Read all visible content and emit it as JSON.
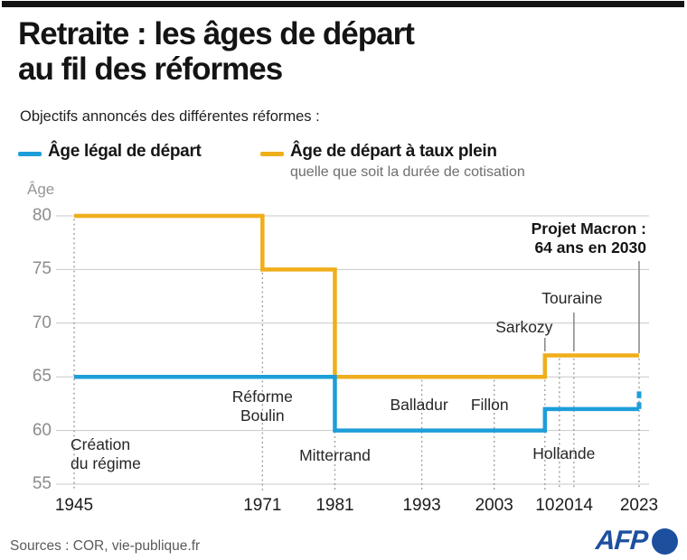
{
  "header": {
    "title": "Retraite : les âges de départ\nau fil des réformes",
    "subtitle": "Objectifs annoncés des différentes réformes :"
  },
  "legend": {
    "series1": {
      "label": "Âge légal de départ",
      "color": "#1d9ed9"
    },
    "series2": {
      "label": "Âge de départ à taux plein",
      "sublabel": "quelle que soit la durée de cotisation",
      "color": "#efae1b"
    }
  },
  "chart_data": {
    "type": "line",
    "step": true,
    "title": "Retraite : les âges de départ au fil des réformes",
    "ylabel": "Âge",
    "xlim": [
      1945,
      2023
    ],
    "ylim": [
      55,
      80
    ],
    "grid": "horizontal",
    "legend_position": "top",
    "yticks": [
      80,
      75,
      70,
      65,
      60,
      55
    ],
    "xticks": [
      {
        "year": 1945,
        "label": "1945"
      },
      {
        "year": 1971,
        "label": "1971"
      },
      {
        "year": 1981,
        "label": "1981"
      },
      {
        "year": 1993,
        "label": "1993"
      },
      {
        "year": 2003,
        "label": "2003"
      },
      {
        "year": 2010,
        "label": "10"
      },
      {
        "year": 2014,
        "label": "2014"
      },
      {
        "year": 2023,
        "label": "2023"
      }
    ],
    "series": [
      {
        "name": "Âge de départ à taux plein",
        "color": "#efae1b",
        "points": [
          [
            1945,
            80
          ],
          [
            1971,
            80
          ],
          [
            1971,
            75
          ],
          [
            1981,
            75
          ],
          [
            1981,
            65
          ],
          [
            2010,
            65
          ],
          [
            2010,
            67
          ],
          [
            2023,
            67
          ]
        ]
      },
      {
        "name": "Âge légal de départ",
        "color": "#1d9ed9",
        "points": [
          [
            1945,
            65
          ],
          [
            1981,
            65
          ],
          [
            1981,
            60
          ],
          [
            2010,
            60
          ],
          [
            2010,
            62
          ],
          [
            2023,
            62
          ]
        ],
        "projection": [
          [
            2023,
            62
          ],
          [
            2023,
            64
          ]
        ]
      }
    ],
    "ref_lines": [
      {
        "year": 1945,
        "top": 80
      },
      {
        "year": 1971,
        "top": 75
      },
      {
        "year": 1981,
        "top": 65
      },
      {
        "year": 1993,
        "top": 65
      },
      {
        "year": 2003,
        "top": 65
      },
      {
        "year": 2010,
        "top": 65
      },
      {
        "year": 2012,
        "top": 67
      },
      {
        "year": 2014,
        "top": 67
      },
      {
        "year": 2023,
        "top": 67
      }
    ],
    "annotations": [
      {
        "id": "creation",
        "text": "Création\ndu régime"
      },
      {
        "id": "boulin",
        "text": "Réforme\nBoulin"
      },
      {
        "id": "mitterrand",
        "text": "Mitterrand"
      },
      {
        "id": "balladur",
        "text": "Balladur"
      },
      {
        "id": "fillon",
        "text": "Fillon"
      },
      {
        "id": "hollande",
        "text": "Hollande"
      },
      {
        "id": "sarkozy",
        "text": "Sarkozy"
      },
      {
        "id": "touraine",
        "text": "Touraine"
      },
      {
        "id": "macron",
        "text": "Projet Macron :\n64 ans en 2030"
      }
    ]
  },
  "footer": {
    "source": "Sources : COR, vie-publique.fr",
    "logo": "AFP"
  }
}
